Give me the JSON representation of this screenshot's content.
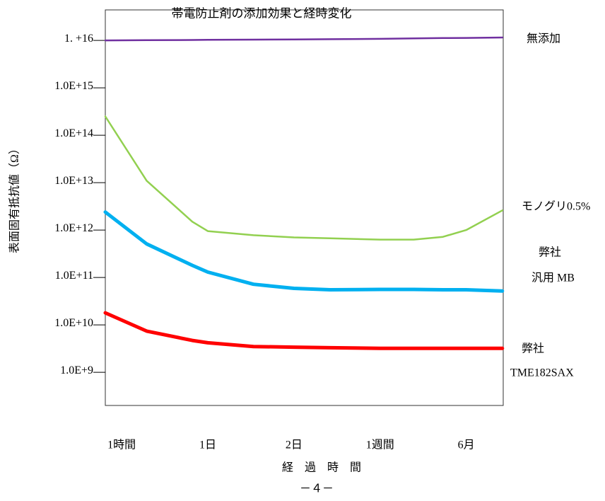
{
  "chart_data": {
    "type": "line",
    "title": "帯電防止剤の添加効果と経時変化",
    "y_label": "表面固有抵抗値（Ω）",
    "x_label": "経　過　時　間",
    "footer": "－４－",
    "log_y": true,
    "x": [
      -0.19,
      0.29,
      0.82,
      1,
      1.53,
      2,
      2.42,
      3,
      3.39,
      3.73,
      4,
      4.42
    ],
    "xlim": [
      -0.19,
      4.43
    ],
    "xticks": [
      {
        "value": 0,
        "label": "1時間"
      },
      {
        "value": 1,
        "label": "1日"
      },
      {
        "value": 2,
        "label": "2日"
      },
      {
        "value": 3,
        "label": "1週間"
      },
      {
        "value": 4,
        "label": "6月"
      }
    ],
    "ylim": [
      200000000.0,
      4.4e+16
    ],
    "yticks": [
      {
        "value": 1e+16,
        "label": "1. +16"
      },
      {
        "value": 1000000000000000.0,
        "label": "1.0E+15"
      },
      {
        "value": 100000000000000.0,
        "label": "1.0E+14"
      },
      {
        "value": 10000000000000.0,
        "label": "1.0E+13"
      },
      {
        "value": 1000000000000.0,
        "label": "1.0E+12"
      },
      {
        "value": 100000000000.0,
        "label": "1.0E+11"
      },
      {
        "value": 10000000000.0,
        "label": "1.0E+10"
      },
      {
        "value": 1000000000.0,
        "label": "1.0E+9"
      }
    ],
    "series": [
      {
        "name": [
          "無添加"
        ],
        "color": "#7030a0",
        "values": [
          1e+16,
          1.01e+16,
          1.02e+16,
          1.03e+16,
          1.04e+16,
          1.05e+16,
          1.06e+16,
          1.08e+16,
          1.1e+16,
          1.12e+16,
          1.13e+16,
          1.15e+16
        ]
      },
      {
        "name": [
          "モノグリ0.5%"
        ],
        "color": "#92d050",
        "values": [
          250000000000000.0,
          11000000000000.0,
          1500000000000.0,
          950000000000.0,
          780000000000.0,
          700000000000.0,
          670000000000.0,
          630000000000.0,
          630000000000.0,
          720000000000.0,
          1000000000000.0,
          2600000000000.0
        ]
      },
      {
        "name": [
          "弊社",
          "汎用 MB"
        ],
        "color": "#00b0f0",
        "values": [
          2400000000000.0,
          510000000000.0,
          180000000000.0,
          130000000000.0,
          72000000000.0,
          59000000000.0,
          55000000000.0,
          56000000000.0,
          56000000000.0,
          55000000000.0,
          55000000000.0,
          52000000000.0
        ]
      },
      {
        "name": [
          "弊社",
          "TME182SAX"
        ],
        "color": "#ff0000",
        "values": [
          18000000000.0,
          7400000000.0,
          4700000000.0,
          4200000000.0,
          3500000000.0,
          3400000000.0,
          3300000000.0,
          3200000000.0,
          3200000000.0,
          3200000000.0,
          3200000000.0,
          3200000000.0
        ]
      }
    ]
  }
}
